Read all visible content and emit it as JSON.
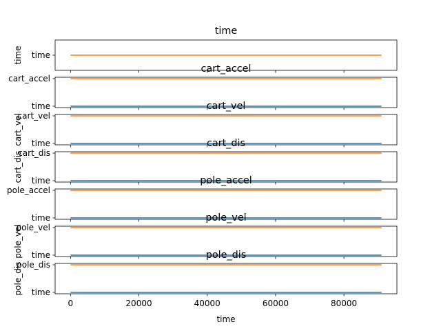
{
  "chart_data": {
    "type": "line",
    "shared_xaxis": {
      "label": "time",
      "range": [
        -4500,
        95500
      ],
      "ticks": [
        0,
        20000,
        40000,
        60000,
        80000
      ],
      "tick_labels": [
        "0",
        "20000",
        "40000",
        "60000",
        "80000"
      ]
    },
    "colors": {
      "blue": "#1f77b4",
      "orange": "#ff7f0e"
    },
    "panels": [
      {
        "title": "time",
        "ylabel": "time",
        "ytick_labels": [
          "time"
        ],
        "series": [
          {
            "color": "#ff7f0e",
            "x": [
              0,
              91000
            ],
            "y": [
              "time",
              "time"
            ]
          }
        ]
      },
      {
        "title": "cart_accel",
        "ylabel": "",
        "ytick_labels": [
          "time",
          "cart_accel"
        ],
        "series": [
          {
            "color": "#1f77b4",
            "x": [
              0,
              91000
            ],
            "y": [
              "time",
              "time"
            ]
          },
          {
            "color": "#ff7f0e",
            "x": [
              0,
              91000
            ],
            "y": [
              "cart_accel",
              "cart_accel"
            ]
          }
        ]
      },
      {
        "title": "cart_vel",
        "ylabel": "cart_vel",
        "ytick_labels": [
          "time",
          "cart_vel"
        ],
        "series": [
          {
            "color": "#1f77b4",
            "x": [
              0,
              91000
            ],
            "y": [
              "time",
              "time"
            ]
          },
          {
            "color": "#ff7f0e",
            "x": [
              0,
              91000
            ],
            "y": [
              "cart_vel",
              "cart_vel"
            ]
          }
        ]
      },
      {
        "title": "cart_dis",
        "ylabel": "cart_dis",
        "ytick_labels": [
          "time",
          "cart_dis"
        ],
        "series": [
          {
            "color": "#1f77b4",
            "x": [
              0,
              91000
            ],
            "y": [
              "time",
              "time"
            ]
          },
          {
            "color": "#ff7f0e",
            "x": [
              0,
              91000
            ],
            "y": [
              "cart_dis",
              "cart_dis"
            ]
          }
        ]
      },
      {
        "title": "pole_accel",
        "ylabel": "",
        "ytick_labels": [
          "time",
          "pole_accel"
        ],
        "series": [
          {
            "color": "#1f77b4",
            "x": [
              0,
              91000
            ],
            "y": [
              "time",
              "time"
            ]
          },
          {
            "color": "#ff7f0e",
            "x": [
              0,
              91000
            ],
            "y": [
              "pole_accel",
              "pole_accel"
            ]
          }
        ]
      },
      {
        "title": "pole_vel",
        "ylabel": "pole_vel",
        "ytick_labels": [
          "time",
          "pole_vel"
        ],
        "series": [
          {
            "color": "#1f77b4",
            "x": [
              0,
              91000
            ],
            "y": [
              "time",
              "time"
            ]
          },
          {
            "color": "#ff7f0e",
            "x": [
              0,
              91000
            ],
            "y": [
              "pole_vel",
              "pole_vel"
            ]
          }
        ]
      },
      {
        "title": "pole_dis",
        "ylabel": "pole_dis",
        "ytick_labels": [
          "time",
          "pole_dis"
        ],
        "series": [
          {
            "color": "#1f77b4",
            "x": [
              0,
              91000
            ],
            "y": [
              "time",
              "time"
            ]
          },
          {
            "color": "#ff7f0e",
            "x": [
              0,
              91000
            ],
            "y": [
              "pole_dis",
              "pole_dis"
            ]
          }
        ]
      }
    ]
  }
}
